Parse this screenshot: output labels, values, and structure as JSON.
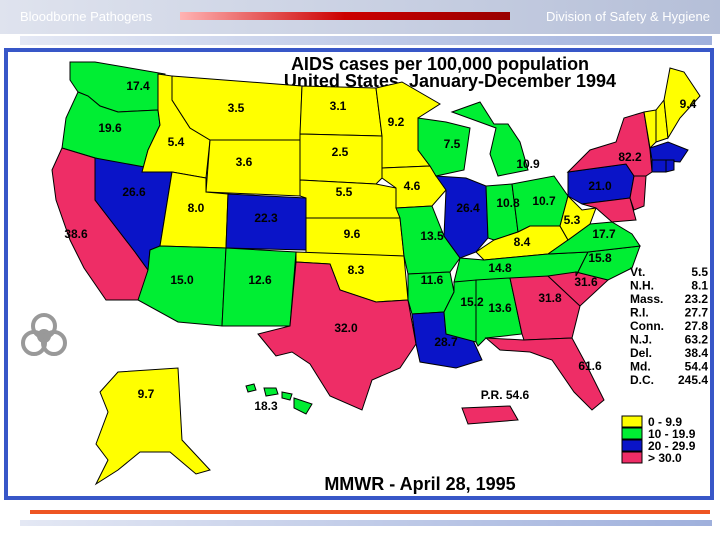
{
  "header": {
    "left_text": "Bloodborne Pathogens",
    "right_text": "Division of Safety & Hygiene"
  },
  "title": {
    "line1": "AIDS cases per 100,000 population",
    "line2": "United States, January-December 1994"
  },
  "footer": {
    "source": "MMWR - April 28, 1995"
  },
  "colors": {
    "yellow": "#ffff00",
    "green": "#00ee33",
    "blue": "#0a14c8",
    "red": "#ee2d66",
    "frame": "#3857c8"
  },
  "states": {
    "wa": "17.4",
    "or": "19.6",
    "ca": "38.6",
    "nv": "26.6",
    "id": "5.4",
    "mt": "3.5",
    "wy": "3.6",
    "ut": "8.0",
    "az": "15.0",
    "nm": "12.6",
    "co": "22.3",
    "nd": "3.1",
    "sd": "2.5",
    "ne": "5.5",
    "ks": "9.6",
    "ok": "8.3",
    "tx": "32.0",
    "mn": "9.2",
    "ia": "4.6",
    "mo": "13.5",
    "ar": "11.6",
    "la": "28.7",
    "wi": "7.5",
    "il": "26.4",
    "mi": "10.9",
    "in": "10.8",
    "oh": "10.7",
    "ky": "8.4",
    "tn": "14.8",
    "ms": "15.2",
    "al": "13.6",
    "ga": "31.8",
    "fl": "61.6",
    "sc": "31.6",
    "nc": "15.8",
    "va": "17.7",
    "wv": "5.3",
    "pa": "21.0",
    "ny": "82.2",
    "me": "9.4",
    "ak": "9.7",
    "hi": "18.3",
    "pr": "P.R. 54.6"
  },
  "small_states": [
    {
      "name": "Vt.",
      "value": "5.5"
    },
    {
      "name": "N.H.",
      "value": "8.1"
    },
    {
      "name": "Mass.",
      "value": "23.2"
    },
    {
      "name": "R.I.",
      "value": "27.7"
    },
    {
      "name": "Conn.",
      "value": "27.8"
    },
    {
      "name": "N.J.",
      "value": "63.2"
    },
    {
      "name": "Del.",
      "value": "38.4"
    },
    {
      "name": "Md.",
      "value": "54.4"
    },
    {
      "name": "D.C.",
      "value": "245.4"
    }
  ],
  "legend": [
    {
      "label": "0 - 9.9",
      "color": "#ffff00"
    },
    {
      "label": "10 - 19.9",
      "color": "#00ee33"
    },
    {
      "label": "20 - 29.9",
      "color": "#0a14c8"
    },
    {
      "label": "> 30.0",
      "color": "#ee2d66"
    }
  ]
}
